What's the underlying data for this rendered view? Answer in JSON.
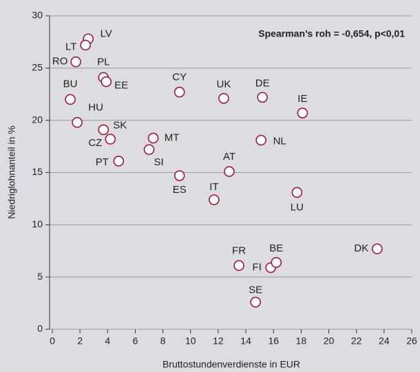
{
  "chart_data": {
    "type": "scatter",
    "annotation": "Spearman’s roh = -0,654, p<0,01",
    "xlabel": "Bruttostundenverdienste in EUR",
    "ylabel": "Niedriglohnanteil in %",
    "labels": [
      "LV",
      "LT",
      "RO",
      "PL",
      "EE",
      "BU",
      "CY",
      "UK",
      "DE",
      "IE",
      "HU",
      "SK",
      "CZ",
      "MT",
      "SI",
      "PT",
      "NL",
      "ES",
      "AT",
      "IT",
      "LU",
      "FR",
      "FI",
      "BE",
      "DK",
      "SE"
    ],
    "x": [
      2.6,
      2.4,
      1.7,
      3.7,
      3.9,
      1.3,
      9.2,
      12.4,
      15.2,
      18.1,
      1.8,
      3.7,
      4.2,
      7.3,
      7.0,
      4.8,
      15.1,
      9.2,
      12.8,
      11.7,
      17.7,
      13.5,
      15.8,
      16.2,
      23.5,
      14.7
    ],
    "values": [
      27.8,
      27.2,
      25.6,
      24.1,
      23.7,
      22.0,
      22.7,
      22.1,
      22.2,
      20.7,
      19.8,
      19.1,
      18.2,
      18.3,
      17.2,
      16.1,
      18.1,
      14.7,
      15.1,
      12.4,
      13.1,
      6.1,
      5.9,
      6.4,
      7.7,
      2.6
    ],
    "color": "#a3173c",
    "xlim": [
      0,
      26
    ],
    "xticks": [
      0,
      2,
      4,
      6,
      8,
      10,
      12,
      14,
      16,
      18,
      20,
      22,
      24,
      26
    ],
    "ylim": [
      0,
      30
    ],
    "yticks": [
      0,
      5,
      10,
      15,
      20,
      25,
      30
    ],
    "grid": true
  }
}
